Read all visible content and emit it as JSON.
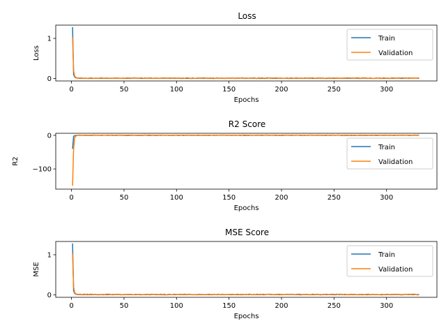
{
  "chart_data": [
    {
      "type": "line",
      "title": "Loss",
      "xlabel": "Epochs",
      "ylabel": "Loss",
      "xlim": [
        -15,
        348
      ],
      "ylim": [
        -0.06,
        1.33
      ],
      "xticks": [
        0,
        50,
        100,
        150,
        200,
        250,
        300
      ],
      "yticks": [
        0,
        1
      ],
      "x_range": [
        1,
        331
      ],
      "grid": false,
      "legend_placement": "top-right",
      "series": [
        {
          "name": "Train",
          "color": "#1f77b4",
          "start_values": [
            1.28,
            0.1,
            0.04,
            0.02,
            0.015
          ],
          "tail_value": 0.008,
          "noise": 0.006
        },
        {
          "name": "Validation",
          "color": "#ff7f0e",
          "start_values": [
            1.03,
            0.2,
            0.06,
            0.03,
            0.02
          ],
          "tail_value": 0.01,
          "noise": 0.01
        }
      ]
    },
    {
      "type": "line",
      "title": "R2 Score",
      "xlabel": "Epochs",
      "ylabel": "R2",
      "xlim": [
        -15,
        348
      ],
      "ylim": [
        -160,
        6
      ],
      "xticks": [
        0,
        50,
        100,
        150,
        200,
        250,
        300
      ],
      "yticks": [
        -100,
        0
      ],
      "x_range": [
        1,
        331
      ],
      "grid": false,
      "legend_placement": "right",
      "series": [
        {
          "name": "Train",
          "color": "#1f77b4",
          "start_values": [
            -40,
            -3,
            -1,
            -0.5,
            -0.2
          ],
          "tail_value": 0.3,
          "noise": 0.3
        },
        {
          "name": "Validation",
          "color": "#ff7f0e",
          "start_values": [
            -150,
            -40,
            -8,
            -2,
            -1
          ],
          "tail_value": 0,
          "noise": 0.8
        }
      ]
    },
    {
      "type": "line",
      "title": "MSE Score",
      "xlabel": "Epochs",
      "ylabel": "MSE",
      "xlim": [
        -15,
        348
      ],
      "ylim": [
        -0.06,
        1.33
      ],
      "xticks": [
        0,
        50,
        100,
        150,
        200,
        250,
        300
      ],
      "yticks": [
        0,
        1
      ],
      "x_range": [
        1,
        331
      ],
      "grid": false,
      "legend_placement": "top-right",
      "series": [
        {
          "name": "Train",
          "color": "#1f77b4",
          "start_values": [
            1.28,
            0.1,
            0.04,
            0.02,
            0.015
          ],
          "tail_value": 0.008,
          "noise": 0.006
        },
        {
          "name": "Validation",
          "color": "#ff7f0e",
          "start_values": [
            1.03,
            0.2,
            0.06,
            0.03,
            0.02
          ],
          "tail_value": 0.01,
          "noise": 0.01
        }
      ]
    }
  ]
}
